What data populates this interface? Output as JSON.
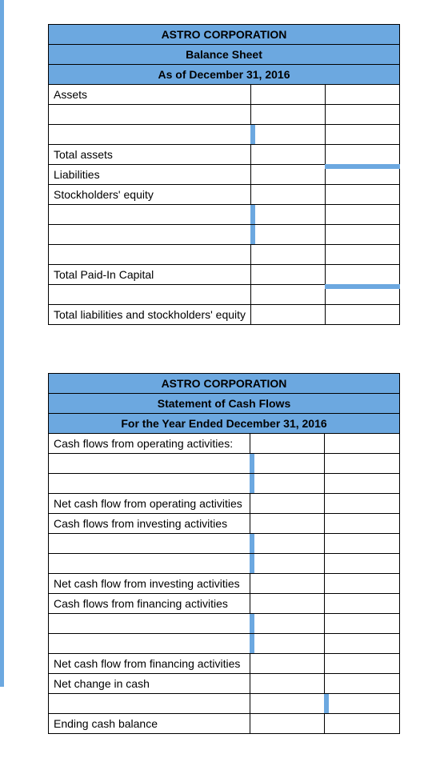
{
  "table1": {
    "company": "ASTRO CORPORATION",
    "title": "Balance Sheet",
    "date": "As of December 31, 2016",
    "rows": {
      "assets": "Assets",
      "total_assets": "Total assets",
      "liabilities": "Liabilities",
      "stockholders_equity": "Stockholders' equity",
      "total_paid_in": "Total Paid-In Capital",
      "total_liab_equity": "Total liabilities and stockholders' equity"
    }
  },
  "table2": {
    "company": "ASTRO CORPORATION",
    "title": "Statement of Cash Flows",
    "date": "For the Year Ended December 31, 2016",
    "rows": {
      "cf_operating": "Cash flows from operating activities:",
      "net_cf_operating": "Net cash flow from operating activities",
      "cf_investing": "Cash flows from investing activities",
      "net_cf_investing": "Net cash flow from investing activities",
      "cf_financing": "Cash flows from financing activities",
      "net_cf_financing": "Net cash flow from financing activities",
      "net_change": "Net change in cash",
      "ending_balance": "Ending cash balance"
    }
  },
  "colors": {
    "header_bg": "#6ca8e0",
    "border": "#000000",
    "background": "#ffffff"
  }
}
